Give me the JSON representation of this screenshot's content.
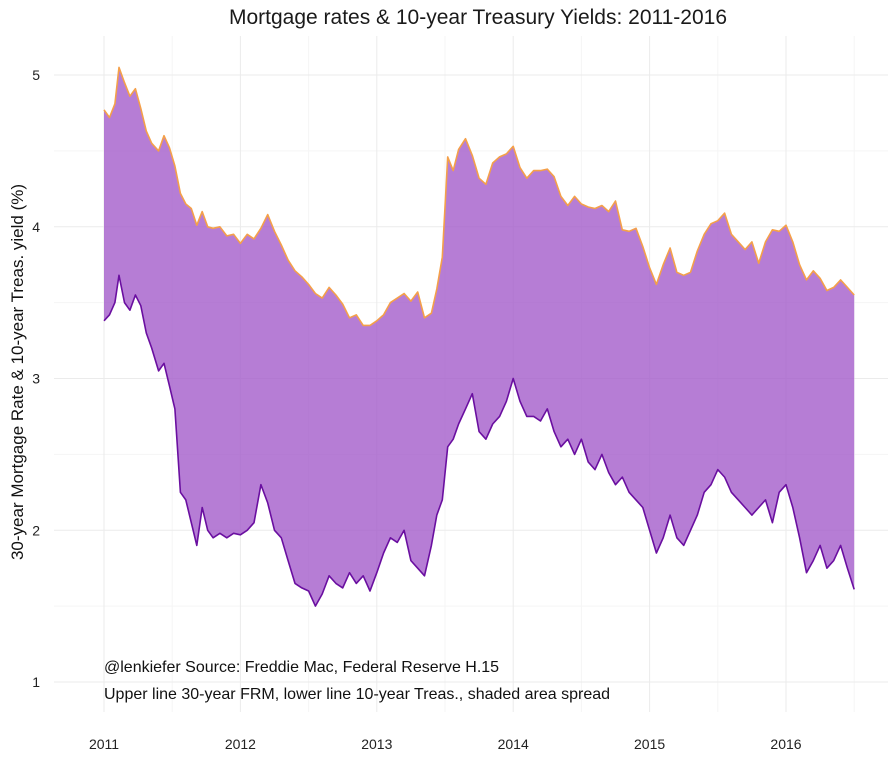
{
  "chart_data": {
    "type": "area",
    "title": "Mortgage rates & 10-year Treasury Yields: 2011-2016",
    "xlabel": "",
    "ylabel": "30-year Mortgage Rate & 10-year Treas. yield (%)",
    "x_tick_labels": [
      "2011",
      "2012",
      "2013",
      "2014",
      "2015",
      "2016"
    ],
    "y_tick_labels": [
      "1",
      "2",
      "3",
      "4",
      "5"
    ],
    "xlim": [
      2010.98,
      2016.55
    ],
    "ylim": [
      1.0,
      5.1
    ],
    "grid": true,
    "legend": "none",
    "captions": [
      "@lenkiefer Source: Freddie Mac, Federal Reserve H.15",
      "Upper line 30-year FRM, lower line 10-year Treas., shaded area spread"
    ],
    "colors": {
      "upper_line": "#f4a04a",
      "lower_line": "#6a0fa0",
      "fill": "#a259c9"
    },
    "x": [
      2011.0,
      2011.04,
      2011.08,
      2011.11,
      2011.15,
      2011.19,
      2011.23,
      2011.27,
      2011.31,
      2011.35,
      2011.4,
      2011.44,
      2011.48,
      2011.52,
      2011.56,
      2011.6,
      2011.64,
      2011.68,
      2011.72,
      2011.76,
      2011.8,
      2011.85,
      2011.9,
      2011.95,
      2012.0,
      2012.05,
      2012.1,
      2012.15,
      2012.2,
      2012.25,
      2012.3,
      2012.35,
      2012.4,
      2012.45,
      2012.5,
      2012.55,
      2012.6,
      2012.65,
      2012.7,
      2012.75,
      2012.8,
      2012.85,
      2012.9,
      2012.95,
      2013.0,
      2013.05,
      2013.1,
      2013.15,
      2013.2,
      2013.25,
      2013.3,
      2013.35,
      2013.4,
      2013.44,
      2013.48,
      2013.52,
      2013.56,
      2013.6,
      2013.65,
      2013.7,
      2013.75,
      2013.8,
      2013.85,
      2013.9,
      2013.95,
      2014.0,
      2014.05,
      2014.1,
      2014.15,
      2014.2,
      2014.25,
      2014.3,
      2014.35,
      2014.4,
      2014.45,
      2014.5,
      2014.55,
      2014.6,
      2014.65,
      2014.7,
      2014.75,
      2014.8,
      2014.85,
      2014.9,
      2014.95,
      2015.0,
      2015.05,
      2015.1,
      2015.15,
      2015.2,
      2015.25,
      2015.3,
      2015.35,
      2015.4,
      2015.45,
      2015.5,
      2015.55,
      2015.6,
      2015.65,
      2015.7,
      2015.75,
      2015.8,
      2015.85,
      2015.9,
      2015.95,
      2016.0,
      2016.05,
      2016.1,
      2016.15,
      2016.2,
      2016.25,
      2016.3,
      2016.35,
      2016.4,
      2016.45,
      2016.5
    ],
    "series": [
      {
        "name": "",
        "values": [
          4.77,
          4.72,
          4.81,
          5.05,
          4.95,
          4.86,
          4.91,
          4.78,
          4.63,
          4.55,
          4.5,
          4.6,
          4.52,
          4.4,
          4.22,
          4.15,
          4.12,
          4.01,
          4.1,
          4.0,
          3.99,
          4.0,
          3.94,
          3.95,
          3.89,
          3.95,
          3.92,
          3.99,
          4.08,
          3.97,
          3.88,
          3.78,
          3.71,
          3.67,
          3.62,
          3.56,
          3.53,
          3.6,
          3.55,
          3.49,
          3.4,
          3.42,
          3.35,
          3.35,
          3.38,
          3.42,
          3.5,
          3.53,
          3.56,
          3.51,
          3.57,
          3.4,
          3.43,
          3.59,
          3.8,
          4.46,
          4.37,
          4.51,
          4.58,
          4.47,
          4.32,
          4.28,
          4.42,
          4.46,
          4.48,
          4.53,
          4.39,
          4.32,
          4.37,
          4.37,
          4.38,
          4.33,
          4.2,
          4.14,
          4.2,
          4.15,
          4.13,
          4.12,
          4.14,
          4.1,
          4.17,
          3.98,
          3.97,
          3.99,
          3.87,
          3.73,
          3.62,
          3.75,
          3.86,
          3.7,
          3.68,
          3.7,
          3.84,
          3.95,
          4.02,
          4.04,
          4.09,
          3.95,
          3.9,
          3.85,
          3.9,
          3.76,
          3.9,
          3.98,
          3.97,
          4.01,
          3.9,
          3.75,
          3.65,
          3.71,
          3.66,
          3.58,
          3.6,
          3.65,
          3.6,
          3.55
        ]
      },
      {
        "name": "",
        "values": [
          3.38,
          3.42,
          3.5,
          3.68,
          3.5,
          3.45,
          3.55,
          3.48,
          3.3,
          3.2,
          3.05,
          3.1,
          2.95,
          2.8,
          2.25,
          2.2,
          2.05,
          1.9,
          2.15,
          2.0,
          1.95,
          1.98,
          1.95,
          1.98,
          1.97,
          2.0,
          2.05,
          2.3,
          2.18,
          2.0,
          1.95,
          1.8,
          1.65,
          1.62,
          1.6,
          1.5,
          1.58,
          1.7,
          1.65,
          1.62,
          1.72,
          1.65,
          1.7,
          1.6,
          1.72,
          1.85,
          1.95,
          1.92,
          2.0,
          1.8,
          1.75,
          1.7,
          1.9,
          2.1,
          2.2,
          2.55,
          2.6,
          2.7,
          2.8,
          2.9,
          2.65,
          2.6,
          2.7,
          2.75,
          2.85,
          3.0,
          2.85,
          2.75,
          2.75,
          2.72,
          2.8,
          2.65,
          2.55,
          2.6,
          2.5,
          2.6,
          2.45,
          2.4,
          2.5,
          2.38,
          2.3,
          2.35,
          2.25,
          2.2,
          2.15,
          2.0,
          1.85,
          1.95,
          2.1,
          1.95,
          1.9,
          2.0,
          2.1,
          2.25,
          2.3,
          2.4,
          2.35,
          2.25,
          2.2,
          2.15,
          2.1,
          2.15,
          2.2,
          2.05,
          2.25,
          2.3,
          2.15,
          1.95,
          1.72,
          1.8,
          1.9,
          1.75,
          1.8,
          1.9,
          1.75,
          1.61
        ]
      }
    ]
  }
}
